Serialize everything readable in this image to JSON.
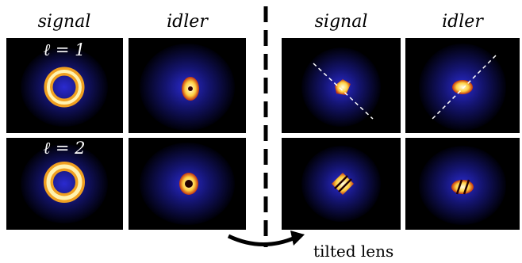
{
  "headers": {
    "left": [
      "signal",
      "idler"
    ],
    "right": [
      "signal",
      "idler"
    ]
  },
  "rows": [
    {
      "label": "ℓ = 1"
    },
    {
      "label": "ℓ = 2"
    }
  ],
  "annotation": "tilted lens"
}
